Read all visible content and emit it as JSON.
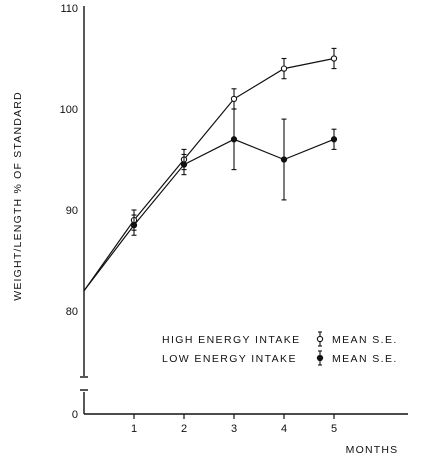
{
  "chart_data": {
    "type": "line",
    "ylabel": "WEIGHT/LENGTH        % OF STANDARD",
    "xlabel": "MONTHS",
    "x": [
      0,
      1,
      2,
      3,
      4,
      5
    ],
    "x_tick_labels": [
      "1",
      "2",
      "3",
      "4",
      "5"
    ],
    "y_tick_labels": [
      "0",
      "80",
      "90",
      "100",
      "110"
    ],
    "ylim": [
      80,
      110
    ],
    "y_axis_break": true,
    "grid": false,
    "legend_position": "bottom-right",
    "series": [
      {
        "name": "HIGH ENERGY INTAKE",
        "marker": "open-circle",
        "values": [
          82,
          89,
          95,
          101,
          104,
          105
        ],
        "se": [
          0,
          1,
          1,
          1,
          1,
          1
        ]
      },
      {
        "name": "LOW ENERGY INTAKE",
        "marker": "filled-circle",
        "values": [
          82,
          88.5,
          94.5,
          97,
          95,
          97
        ],
        "se": [
          0,
          1,
          1,
          3,
          4,
          1
        ]
      }
    ],
    "legend_suffix": "MEAN S.E."
  }
}
